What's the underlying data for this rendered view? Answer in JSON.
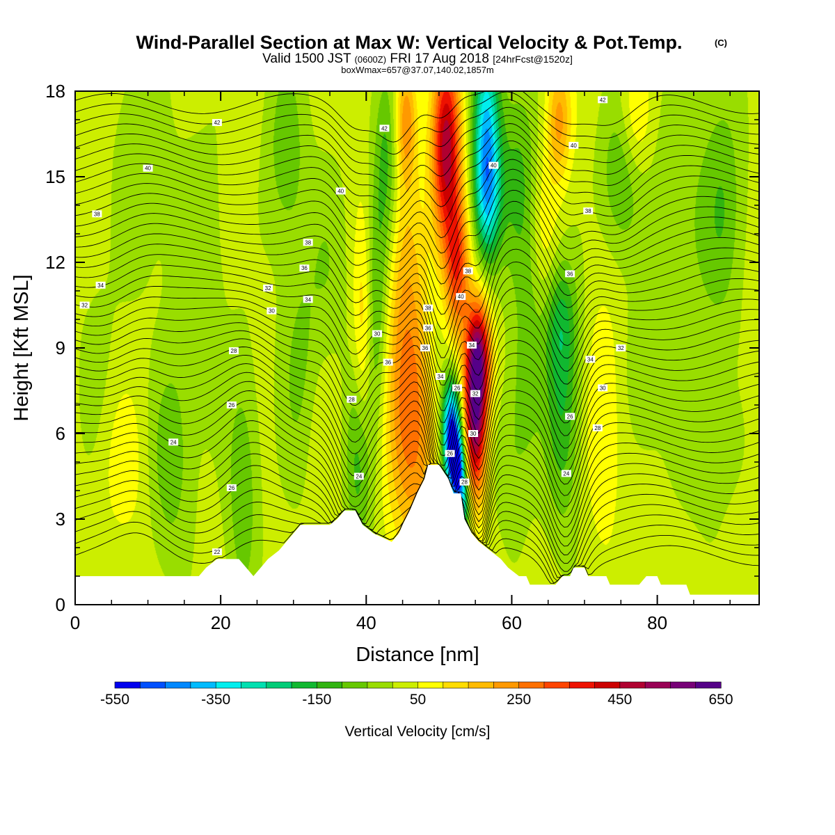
{
  "header": {
    "title": "Wind-Parallel Section at Max W: Vertical Velocity & Pot.Temp.",
    "title_mark": "(C)",
    "valid_a": "Valid 1500 JST",
    "valid_z": "(0600Z)",
    "valid_b": "FRI 17 Aug 2018",
    "valid_fcst": "[24hrFcst@1520z]",
    "box_info": "boxWmax=657@37.07,140.02,1857m"
  },
  "chart_data": {
    "type": "heatmap",
    "xlabel": "Distance [nm]",
    "ylabel": "Height [Kft MSL]",
    "xlim": [
      0,
      94
    ],
    "ylim": [
      0,
      18
    ],
    "x_ticks": [
      0,
      20,
      40,
      60,
      80
    ],
    "y_ticks": [
      0,
      3,
      6,
      9,
      12,
      15,
      18
    ],
    "colorbar": {
      "title": "Vertical Velocity [cm/s]",
      "labels": [
        -550,
        -350,
        -150,
        50,
        250,
        450,
        650
      ],
      "levels": [
        -550,
        -500,
        -450,
        -400,
        -350,
        -300,
        -250,
        -200,
        -150,
        -100,
        -50,
        0,
        50,
        100,
        150,
        200,
        250,
        300,
        350,
        400,
        450,
        500,
        550,
        600,
        650
      ],
      "colors": [
        "#0000ee",
        "#0050ff",
        "#0088ff",
        "#00bbff",
        "#00eeee",
        "#00e0b0",
        "#00cc77",
        "#10b830",
        "#30b410",
        "#66c800",
        "#99dd00",
        "#ccee00",
        "#ffff00",
        "#ffdd00",
        "#ffbb00",
        "#ff9900",
        "#ff7000",
        "#ff4400",
        "#ee1100",
        "#cc0000",
        "#b00030",
        "#990055",
        "#770077",
        "#550088"
      ]
    },
    "velocity_features": [
      {
        "x": 51,
        "z": 16,
        "w": 460,
        "sx": 1.4,
        "sz": 2.4
      },
      {
        "x": 52.5,
        "z": 11.8,
        "w": 300,
        "sx": 1.2,
        "sz": 1.8
      },
      {
        "x": 56.5,
        "z": 16.5,
        "w": -350,
        "sx": 1.3,
        "sz": 2.5
      },
      {
        "x": 56.8,
        "z": 14.2,
        "w": -200,
        "sx": 1.3,
        "sz": 1.6
      },
      {
        "x": 55,
        "z": 6.5,
        "w": 520,
        "sx": 1.1,
        "sz": 2.0
      },
      {
        "x": 55.5,
        "z": 8.8,
        "w": 380,
        "sx": 1.2,
        "sz": 1.4
      },
      {
        "x": 51.7,
        "z": 6,
        "w": -560,
        "sx": 0.9,
        "sz": 1.3
      },
      {
        "x": 52.6,
        "z": 4.7,
        "w": -480,
        "sx": 0.8,
        "sz": 0.9
      },
      {
        "x": 53.4,
        "z": 3.4,
        "w": -250,
        "sx": 0.7,
        "sz": 0.7
      },
      {
        "x": 49.7,
        "z": 8.3,
        "w": -60,
        "sx": 1.3,
        "sz": 2.2
      },
      {
        "x": 46.5,
        "z": 6,
        "w": 230,
        "sx": 2.5,
        "sz": 3.0
      },
      {
        "x": 45.2,
        "z": 11,
        "w": 140,
        "sx": 2.0,
        "sz": 3.5
      },
      {
        "x": 39,
        "z": 5,
        "w": -150,
        "sx": 1.3,
        "sz": 2.5
      },
      {
        "x": 41.2,
        "z": 10,
        "w": -160,
        "sx": 1.2,
        "sz": 3.0
      },
      {
        "x": 42.8,
        "z": 15.5,
        "w": -150,
        "sx": 1.2,
        "sz": 2.5
      },
      {
        "x": 39.7,
        "z": 9.6,
        "w": 160,
        "sx": 1.0,
        "sz": 3.0
      },
      {
        "x": 45.5,
        "z": 17,
        "w": 200,
        "sx": 1.0,
        "sz": 1.5
      },
      {
        "x": 67,
        "z": 7,
        "w": -160,
        "sx": 1.8,
        "sz": 3.0
      },
      {
        "x": 66.6,
        "z": 10,
        "w": -120,
        "sx": 1.5,
        "sz": 1.5
      },
      {
        "x": 61,
        "z": 15,
        "w": -130,
        "sx": 2.0,
        "sz": 2.5
      },
      {
        "x": 63,
        "z": 12,
        "w": -80,
        "sx": 1.5,
        "sz": 2.0
      },
      {
        "x": 66.5,
        "z": 17,
        "w": 200,
        "sx": 1.2,
        "sz": 1.5
      },
      {
        "x": 64,
        "z": 13,
        "w": 120,
        "sx": 1.5,
        "sz": 2.0
      },
      {
        "x": 75,
        "z": 15,
        "w": -120,
        "sx": 2.0,
        "sz": 2.0
      },
      {
        "x": 77,
        "z": 17,
        "w": 100,
        "sx": 1.5,
        "sz": 1.5
      },
      {
        "x": 83,
        "z": 13,
        "w": -70,
        "sx": 3.0,
        "sz": 4.0
      },
      {
        "x": 89,
        "z": 14,
        "w": -110,
        "sx": 2.0,
        "sz": 3.0
      },
      {
        "x": 29,
        "z": 16,
        "w": -100,
        "sx": 2.0,
        "sz": 2.5
      },
      {
        "x": 31,
        "z": 8,
        "w": -90,
        "sx": 2.0,
        "sz": 3.0
      },
      {
        "x": 35,
        "z": 12,
        "w": -60,
        "sx": 2.0,
        "sz": 2.5
      },
      {
        "x": 33.5,
        "z": 6,
        "w": 40,
        "sx": 2.0,
        "sz": 2.5
      },
      {
        "x": 23,
        "z": 4,
        "w": -110,
        "sx": 1.5,
        "sz": 3.0
      },
      {
        "x": 13,
        "z": 5,
        "w": -100,
        "sx": 2.0,
        "sz": 2.5
      },
      {
        "x": 6.5,
        "z": 5,
        "w": 60,
        "sx": 2.5,
        "sz": 2.0
      },
      {
        "x": 9,
        "z": 15.5,
        "w": -60,
        "sx": 2.5,
        "sz": 3.0
      },
      {
        "x": 17,
        "z": 11.5,
        "w": -50,
        "sx": 3.0,
        "sz": 4.0
      },
      {
        "x": 3,
        "z": 8,
        "w": -40,
        "sx": 2.0,
        "sz": 3.0
      },
      {
        "x": 72.5,
        "z": 6.5,
        "w": 80,
        "sx": 2.0,
        "sz": 3.0
      },
      {
        "x": 78,
        "z": 8,
        "w": -60,
        "sx": 2.0,
        "sz": 2.0
      },
      {
        "x": 87,
        "z": 5,
        "w": -40,
        "sx": 3.0,
        "sz": 2.0
      },
      {
        "x": 60,
        "z": 5,
        "w": -60,
        "sx": 2.0,
        "sz": 2.0
      },
      {
        "x": 62,
        "z": 8,
        "w": -80,
        "sx": 1.5,
        "sz": 2.0
      }
    ],
    "terrain_kft": [
      [
        0,
        1.0
      ],
      [
        17,
        1.0
      ],
      [
        18,
        1.3
      ],
      [
        19.5,
        1.6
      ],
      [
        22.5,
        1.6
      ],
      [
        23.5,
        1.3
      ],
      [
        24.5,
        1.0
      ],
      [
        25.5,
        1.3
      ],
      [
        26.5,
        1.6
      ],
      [
        28,
        1.9
      ],
      [
        29,
        2.2
      ],
      [
        30,
        2.5
      ],
      [
        31,
        2.8
      ],
      [
        32,
        2.8
      ],
      [
        35,
        2.8
      ],
      [
        36,
        3.0
      ],
      [
        37,
        3.3
      ],
      [
        38.5,
        3.3
      ],
      [
        39.5,
        2.8
      ],
      [
        41,
        2.5
      ],
      [
        43.5,
        2.2
      ],
      [
        44.5,
        2.5
      ],
      [
        45,
        2.8
      ],
      [
        46,
        3.3
      ],
      [
        47,
        3.9
      ],
      [
        48,
        4.4
      ],
      [
        48.5,
        4.9
      ],
      [
        50,
        4.9
      ],
      [
        51.3,
        4.4
      ],
      [
        52,
        3.9
      ],
      [
        53,
        3.9
      ],
      [
        53.5,
        3.0
      ],
      [
        54.5,
        2.5
      ],
      [
        55.5,
        2.2
      ],
      [
        57,
        1.9
      ],
      [
        58.5,
        1.6
      ],
      [
        59.5,
        1.3
      ],
      [
        61,
        1.0
      ],
      [
        62,
        1.0
      ],
      [
        62.5,
        0.7
      ],
      [
        66,
        0.7
      ],
      [
        67,
        1.0
      ],
      [
        68,
        1.0
      ],
      [
        68.5,
        1.3
      ],
      [
        70,
        1.3
      ],
      [
        70.5,
        1.0
      ],
      [
        73,
        1.0
      ],
      [
        73.5,
        0.7
      ],
      [
        77.5,
        0.7
      ],
      [
        78.5,
        1.0
      ],
      [
        80,
        1.0
      ],
      [
        80.5,
        0.7
      ],
      [
        84,
        0.7
      ],
      [
        84.5,
        0.35
      ],
      [
        94,
        0.35
      ]
    ],
    "theta_contours": [
      22,
      24,
      26,
      28,
      30,
      32,
      34,
      36,
      38,
      40,
      42
    ],
    "contour_labels": [
      {
        "x": 19.5,
        "z": 1.85,
        "label": "22"
      },
      {
        "x": 13.5,
        "z": 5.7,
        "label": "24"
      },
      {
        "x": 21.5,
        "z": 4.1,
        "label": "26"
      },
      {
        "x": 21.5,
        "z": 7.0,
        "label": "26"
      },
      {
        "x": 21.8,
        "z": 8.9,
        "label": "28"
      },
      {
        "x": 27,
        "z": 10.3,
        "label": "30"
      },
      {
        "x": 1.3,
        "z": 10.5,
        "label": "32"
      },
      {
        "x": 26.5,
        "z": 11.1,
        "label": "32"
      },
      {
        "x": 3.5,
        "z": 11.2,
        "label": "34"
      },
      {
        "x": 32,
        "z": 10.7,
        "label": "34"
      },
      {
        "x": 31.5,
        "z": 11.8,
        "label": "36"
      },
      {
        "x": 3.0,
        "z": 13.7,
        "label": "38"
      },
      {
        "x": 32,
        "z": 12.7,
        "label": "38"
      },
      {
        "x": 10,
        "z": 15.3,
        "label": "40"
      },
      {
        "x": 19.5,
        "z": 16.9,
        "label": "42"
      },
      {
        "x": 36.5,
        "z": 14.5,
        "label": "40"
      },
      {
        "x": 42.5,
        "z": 16.7,
        "label": "42"
      },
      {
        "x": 38,
        "z": 7.2,
        "label": "28"
      },
      {
        "x": 39,
        "z": 4.5,
        "label": "24"
      },
      {
        "x": 41.5,
        "z": 9.5,
        "label": "30"
      },
      {
        "x": 43,
        "z": 8.5,
        "label": "36"
      },
      {
        "x": 48.5,
        "z": 10.4,
        "label": "38"
      },
      {
        "x": 48.5,
        "z": 9.7,
        "label": "36"
      },
      {
        "x": 48.1,
        "z": 9.0,
        "label": "36"
      },
      {
        "x": 50.2,
        "z": 8.0,
        "label": "34"
      },
      {
        "x": 52.5,
        "z": 7.6,
        "label": "26"
      },
      {
        "x": 51.5,
        "z": 5.3,
        "label": "26"
      },
      {
        "x": 53.5,
        "z": 4.3,
        "label": "28"
      },
      {
        "x": 55,
        "z": 7.4,
        "label": "32"
      },
      {
        "x": 54.5,
        "z": 9.1,
        "label": "34"
      },
      {
        "x": 54.7,
        "z": 6.0,
        "label": "30"
      },
      {
        "x": 53,
        "z": 10.8,
        "label": "40"
      },
      {
        "x": 54,
        "z": 11.7,
        "label": "38"
      },
      {
        "x": 57.5,
        "z": 15.4,
        "label": "40"
      },
      {
        "x": 68,
        "z": 6.6,
        "label": "26"
      },
      {
        "x": 67.5,
        "z": 4.6,
        "label": "24"
      },
      {
        "x": 70.8,
        "z": 8.6,
        "label": "34"
      },
      {
        "x": 75,
        "z": 9.0,
        "label": "32"
      },
      {
        "x": 72.5,
        "z": 7.6,
        "label": "30"
      },
      {
        "x": 71.8,
        "z": 6.2,
        "label": "28"
      },
      {
        "x": 68,
        "z": 11.6,
        "label": "36"
      },
      {
        "x": 70.5,
        "z": 13.8,
        "label": "38"
      },
      {
        "x": 68.5,
        "z": 16.1,
        "label": "40"
      },
      {
        "x": 72.5,
        "z": 17.7,
        "label": "42"
      }
    ]
  }
}
